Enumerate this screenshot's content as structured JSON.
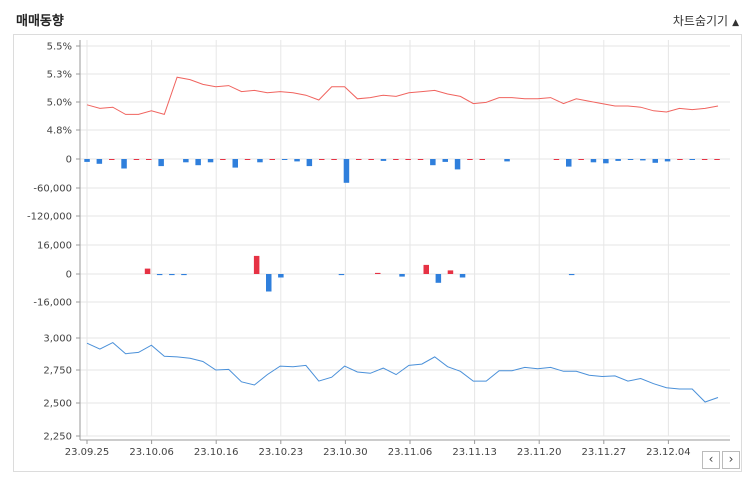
{
  "header": {
    "title": "매매동향",
    "toggle_label": "차트숨기기",
    "toggle_icon": "triangle-up-icon"
  },
  "nav": {
    "prev_icon": "chevron-left-icon",
    "prev_glyph": "‹",
    "next_icon": "chevron-right-icon",
    "next_glyph": "›"
  },
  "colors": {
    "line_red": "#f0645f",
    "line_blue": "#4a90d9",
    "bar_red": "#e63244",
    "bar_blue": "#2f7fdc",
    "grid": "#e6e6e6"
  },
  "chart_data": [
    {
      "type": "line",
      "name": "foreign-ownership",
      "yticks": [
        "5.5%",
        "5.3%",
        "5.0%",
        "4.8%"
      ],
      "ylim": [
        4.8,
        5.5
      ],
      "values": [
        5.01,
        4.98,
        4.99,
        4.93,
        4.93,
        4.96,
        4.93,
        5.24,
        5.22,
        5.18,
        5.16,
        5.17,
        5.12,
        5.13,
        5.11,
        5.12,
        5.11,
        5.09,
        5.05,
        5.16,
        5.16,
        5.06,
        5.07,
        5.09,
        5.08,
        5.11,
        5.12,
        5.13,
        5.1,
        5.08,
        5.02,
        5.03,
        5.07,
        5.07,
        5.06,
        5.06,
        5.07,
        5.02,
        5.06,
        5.04,
        5.02,
        5.0,
        5.0,
        4.99,
        4.96,
        4.95,
        4.98,
        4.97,
        4.98,
        5.0
      ]
    },
    {
      "type": "bar",
      "name": "net-buy-1",
      "yticks": [
        "0",
        "-60,000",
        "-120,000"
      ],
      "ylim": [
        -120000,
        0
      ],
      "values": [
        -6000,
        -10000,
        2000,
        -20000,
        3000,
        10000,
        -15000,
        0,
        -7000,
        -13000,
        -7000,
        2000,
        -18000,
        5000,
        -7000,
        5000,
        -2000,
        -5000,
        -15000,
        10000,
        25000,
        -50000,
        4000,
        11000,
        -4000,
        15000,
        5000,
        5000,
        -13000,
        -6000,
        -22000,
        5000,
        16000,
        0,
        -5000,
        0,
        0,
        0,
        4000,
        -16000,
        17000,
        -7000,
        -9000,
        -4000,
        -2000,
        -3000,
        -8000,
        -5000,
        9000,
        -2000,
        2000,
        9000
      ]
    },
    {
      "type": "bar",
      "name": "net-buy-2",
      "yticks": [
        "16,000",
        "0",
        "-16,000"
      ],
      "ylim": [
        -16000,
        16000
      ],
      "values": [
        0,
        0,
        0,
        0,
        0,
        3000,
        -600,
        -600,
        -600,
        0,
        0,
        0,
        0,
        0,
        10000,
        -10000,
        -2000,
        0,
        0,
        0,
        0,
        -600,
        0,
        0,
        600,
        0,
        -1500,
        0,
        5000,
        -5000,
        2000,
        -2000,
        0,
        0,
        0,
        0,
        0,
        0,
        0,
        0,
        -600,
        0,
        0,
        0,
        0,
        0,
        0,
        0,
        0,
        0,
        0,
        0,
        0
      ]
    },
    {
      "type": "line",
      "name": "price",
      "yticks": [
        "3,000",
        "2,750",
        "2,500",
        "2,250"
      ],
      "ylim": [
        2250,
        3000
      ],
      "values": [
        2960,
        2915,
        2965,
        2880,
        2890,
        2945,
        2860,
        2855,
        2845,
        2820,
        2755,
        2760,
        2665,
        2640,
        2720,
        2785,
        2780,
        2790,
        2670,
        2700,
        2785,
        2740,
        2730,
        2770,
        2720,
        2790,
        2800,
        2855,
        2780,
        2745,
        2670,
        2670,
        2750,
        2750,
        2775,
        2765,
        2775,
        2745,
        2745,
        2715,
        2705,
        2710,
        2670,
        2690,
        2650,
        2620,
        2610,
        2610,
        2510,
        2545
      ]
    }
  ],
  "x_labels": [
    "23.09.25",
    "23.10.06",
    "23.10.16",
    "23.10.23",
    "23.10.30",
    "23.11.06",
    "23.11.13",
    "23.11.20",
    "23.11.27",
    "23.12.04"
  ]
}
